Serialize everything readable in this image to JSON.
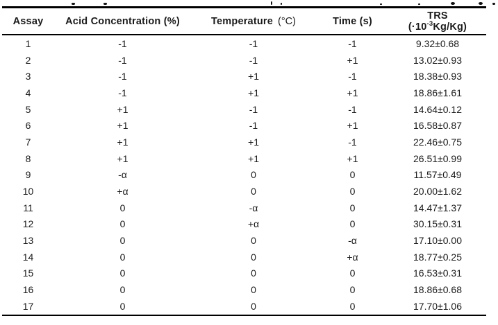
{
  "table": {
    "headers": {
      "assay": "Assay",
      "acid": "Acid Concentration (%)",
      "temperature_label": "Temperature",
      "temperature_unit": "(°C)",
      "time": "Time (s)",
      "trs_line1": "TRS",
      "trs_unit_pre": "(·10",
      "trs_unit_sup": "-3",
      "trs_unit_post": "Kg/Kg)"
    },
    "column_keys": [
      "assay",
      "acid-concentration",
      "temperature",
      "time",
      "trs"
    ],
    "rows": [
      [
        "1",
        "-1",
        "-1",
        "-1",
        "9.32±0.68"
      ],
      [
        "2",
        "-1",
        "-1",
        "+1",
        "13.02±0.93"
      ],
      [
        "3",
        "-1",
        "+1",
        "-1",
        "18.38±0.93"
      ],
      [
        "4",
        "-1",
        "+1",
        "+1",
        "18.86±1.61"
      ],
      [
        "5",
        "+1",
        "-1",
        "-1",
        "14.64±0.12"
      ],
      [
        "6",
        "+1",
        "-1",
        "+1",
        "16.58±0.87"
      ],
      [
        "7",
        "+1",
        "+1",
        "-1",
        "22.46±0.75"
      ],
      [
        "8",
        "+1",
        "+1",
        "+1",
        "26.51±0.99"
      ],
      [
        "9",
        "-α",
        "0",
        "0",
        "11.57±0.49"
      ],
      [
        "10",
        "+α",
        "0",
        "0",
        "20.00±1.62"
      ],
      [
        "11",
        "0",
        "-α",
        "0",
        "14.47±1.37"
      ],
      [
        "12",
        "0",
        "+α",
        "0",
        "30.15±0.31"
      ],
      [
        "13",
        "0",
        "0",
        "-α",
        "17.10±0.00"
      ],
      [
        "14",
        "0",
        "0",
        "+α",
        "18.77±0.25"
      ],
      [
        "15",
        "0",
        "0",
        "0",
        "16.53±0.31"
      ],
      [
        "16",
        "0",
        "0",
        "0",
        "18.86±0.68"
      ],
      [
        "17",
        "0",
        "0",
        "0",
        "17.70±1.06"
      ]
    ],
    "colors": {
      "text": "#1a1a1a",
      "rule": "#000000"
    }
  }
}
